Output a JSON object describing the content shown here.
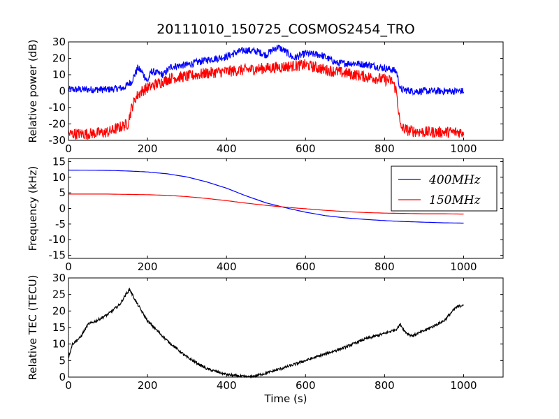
{
  "title": "20111010_150725_COSMOS2454_TRO",
  "chart_data": [
    {
      "type": "line",
      "ylabel": "Relative power (dB)",
      "xlabel": "",
      "xlim": [
        0,
        1100
      ],
      "ylim": [
        -30,
        30
      ],
      "xticks": [
        0,
        200,
        400,
        600,
        800,
        1000
      ],
      "yticks": [
        -30,
        -20,
        -10,
        0,
        10,
        20,
        30
      ],
      "grid": false,
      "series": [
        {
          "color": "#0000ff",
          "noise": 2.2,
          "x": [
            0,
            50,
            100,
            140,
            160,
            175,
            185,
            200,
            210,
            240,
            260,
            300,
            350,
            400,
            430,
            450,
            480,
            500,
            510,
            530,
            550,
            570,
            600,
            640,
            680,
            720,
            760,
            800,
            820,
            830,
            840,
            870,
            900,
            950,
            1000
          ],
          "y": [
            1,
            1,
            1,
            2,
            6,
            14,
            12,
            6,
            12,
            10,
            15,
            16,
            19,
            21,
            24,
            25,
            24,
            22,
            24,
            27,
            24,
            20,
            23,
            22,
            17,
            17,
            16,
            14,
            13,
            12,
            1,
            0,
            0,
            0,
            0
          ]
        },
        {
          "color": "#ff0000",
          "noise": 3.5,
          "x": [
            0,
            50,
            100,
            130,
            150,
            160,
            170,
            185,
            200,
            230,
            260,
            300,
            350,
            400,
            450,
            500,
            550,
            600,
            650,
            700,
            750,
            800,
            820,
            830,
            840,
            860,
            900,
            950,
            1000
          ],
          "y": [
            -26,
            -26,
            -25,
            -22,
            -20,
            -10,
            -4,
            0,
            2,
            5,
            8,
            9,
            11,
            12,
            13,
            14,
            15,
            16,
            13,
            11,
            9,
            7,
            6,
            0,
            -22,
            -24,
            -25,
            -25,
            -25
          ]
        }
      ]
    },
    {
      "type": "line",
      "ylabel": "Frequency (kHz)",
      "xlabel": "",
      "xlim": [
        0,
        1100
      ],
      "ylim": [
        -16,
        16
      ],
      "xticks": [
        0,
        200,
        400,
        600,
        800,
        1000
      ],
      "yticks": [
        -15,
        -10,
        -5,
        0,
        5,
        10,
        15
      ],
      "grid": false,
      "legend": "top-right",
      "series": [
        {
          "name": "400MHz",
          "color": "#0000ff",
          "x": [
            0,
            100,
            150,
            200,
            250,
            300,
            350,
            400,
            450,
            500,
            550,
            600,
            650,
            700,
            750,
            800,
            850,
            900,
            950,
            1000
          ],
          "y": [
            12.3,
            12.2,
            12.0,
            11.7,
            11.1,
            10.1,
            8.5,
            6.5,
            4.0,
            1.8,
            0.2,
            -1.2,
            -2.3,
            -3.0,
            -3.5,
            -3.9,
            -4.2,
            -4.4,
            -4.6,
            -4.7
          ]
        },
        {
          "name": "150MHz",
          "color": "#ff0000",
          "x": [
            0,
            100,
            150,
            200,
            250,
            300,
            350,
            400,
            450,
            500,
            550,
            600,
            650,
            700,
            750,
            800,
            850,
            900,
            950,
            1000
          ],
          "y": [
            4.6,
            4.6,
            4.5,
            4.4,
            4.2,
            3.8,
            3.2,
            2.5,
            1.7,
            1.0,
            0.4,
            -0.1,
            -0.6,
            -1.0,
            -1.3,
            -1.5,
            -1.6,
            -1.7,
            -1.7,
            -1.8
          ]
        }
      ]
    },
    {
      "type": "line",
      "ylabel": "Relative TEC (TECU)",
      "xlabel": "Time (s)",
      "xlim": [
        0,
        1100
      ],
      "ylim": [
        0,
        30
      ],
      "xticks": [
        0,
        200,
        400,
        600,
        800,
        1000
      ],
      "yticks": [
        0,
        5,
        10,
        15,
        20,
        25,
        30
      ],
      "grid": false,
      "series": [
        {
          "color": "#000000",
          "noise": 0.4,
          "x": [
            0,
            10,
            30,
            50,
            70,
            100,
            130,
            145,
            155,
            170,
            200,
            250,
            300,
            350,
            400,
            430,
            460,
            500,
            550,
            600,
            650,
            700,
            750,
            800,
            830,
            840,
            850,
            860,
            870,
            900,
            950,
            980,
            1000
          ],
          "y": [
            6,
            10,
            12,
            16,
            17,
            19,
            22,
            25,
            26.5,
            23,
            17,
            11,
            6,
            2.5,
            0.8,
            0.3,
            0,
            1.2,
            3,
            5,
            7,
            9,
            11.5,
            13.2,
            14.5,
            16,
            14,
            13,
            12.5,
            14,
            17,
            21,
            22
          ]
        }
      ]
    }
  ]
}
